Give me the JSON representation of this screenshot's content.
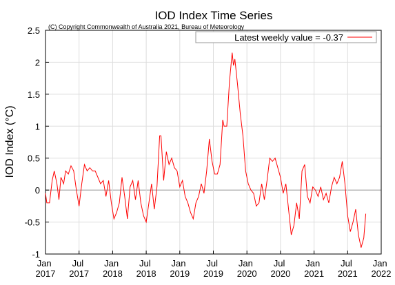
{
  "chart_data": {
    "type": "line",
    "title": "IOD Index Time Series",
    "subtitle": "(C) Copyright Commonwealth of Australia 2021, Bureau of Meteorology",
    "ylabel": "IOD Index (°C)",
    "legend": "upper right",
    "grid": true,
    "xlim": [
      2017,
      2022
    ],
    "ylim": [
      -1,
      2.5
    ],
    "yticks": [
      {
        "value": 2.5,
        "label": "2.5"
      },
      2,
      {
        "value": 1.5,
        "label": "1.5"
      },
      1,
      {
        "value": 0.5,
        "label": "0.5"
      },
      0,
      {
        "value": -0.5,
        "label": "-0.5"
      },
      -1
    ],
    "xticks": [
      {
        "value": 2017,
        "label": "Jan 2017"
      },
      {
        "value": 2017.5,
        "label": "Jul 2017"
      },
      {
        "value": 2018,
        "label": "Jan 2018"
      },
      {
        "value": 2018.5,
        "label": "Jul 2018"
      },
      {
        "value": 2019,
        "label": "Jan 2019"
      },
      {
        "value": 2019.5,
        "label": "Jul 2019"
      },
      {
        "value": 2020,
        "label": "Jan 2020"
      },
      {
        "value": 2020.5,
        "label": "Jul 2020"
      },
      {
        "value": 2021,
        "label": "Jan 2021"
      },
      {
        "value": 2021.5,
        "label": "Jul 2021"
      },
      {
        "value": 2022,
        "label": "Jan 2022"
      }
    ],
    "x": [
      2017.0,
      2017.02,
      2017.06,
      2017.1,
      2017.13,
      2017.17,
      2017.2,
      2017.23,
      2017.27,
      2017.3,
      2017.34,
      2017.38,
      2017.42,
      2017.46,
      2017.5,
      2017.54,
      2017.58,
      2017.62,
      2017.66,
      2017.7,
      2017.74,
      2017.78,
      2017.82,
      2017.86,
      2017.9,
      2017.94,
      2017.98,
      2018.02,
      2018.06,
      2018.1,
      2018.14,
      2018.18,
      2018.22,
      2018.26,
      2018.3,
      2018.34,
      2018.38,
      2018.42,
      2018.46,
      2018.5,
      2018.54,
      2018.58,
      2018.62,
      2018.66,
      2018.7,
      2018.72,
      2018.76,
      2018.8,
      2018.84,
      2018.88,
      2018.92,
      2018.96,
      2019.0,
      2019.04,
      2019.08,
      2019.12,
      2019.16,
      2019.2,
      2019.24,
      2019.28,
      2019.32,
      2019.36,
      2019.4,
      2019.44,
      2019.48,
      2019.52,
      2019.56,
      2019.6,
      2019.64,
      2019.66,
      2019.7,
      2019.74,
      2019.78,
      2019.8,
      2019.82,
      2019.86,
      2019.9,
      2019.94,
      2019.98,
      2020.02,
      2020.06,
      2020.1,
      2020.14,
      2020.18,
      2020.22,
      2020.26,
      2020.3,
      2020.34,
      2020.38,
      2020.42,
      2020.46,
      2020.5,
      2020.54,
      2020.58,
      2020.62,
      2020.66,
      2020.7,
      2020.74,
      2020.78,
      2020.82,
      2020.86,
      2020.9,
      2020.94,
      2020.98,
      2021.02,
      2021.06,
      2021.1,
      2021.14,
      2021.18,
      2021.22,
      2021.26,
      2021.3,
      2021.34,
      2021.38,
      2021.42,
      2021.46,
      2021.5,
      2021.54,
      2021.58,
      2021.62,
      2021.66,
      2021.7,
      2021.74,
      2021.77
    ],
    "series": [
      {
        "name": "Latest weekly value = -0.37",
        "color": "#ff0000",
        "values": [
          -0.05,
          -0.2,
          -0.2,
          0.15,
          0.3,
          0.1,
          -0.15,
          0.2,
          0.1,
          0.3,
          0.25,
          0.38,
          0.3,
          0,
          -0.25,
          0.1,
          0.4,
          0.3,
          0.35,
          0.3,
          0.3,
          0.2,
          0.1,
          0.15,
          -0.1,
          0.15,
          -0.2,
          -0.45,
          -0.35,
          -0.2,
          0.2,
          -0.1,
          -0.45,
          0.05,
          0.15,
          -0.15,
          0.15,
          -0.2,
          -0.4,
          -0.5,
          -0.2,
          0.1,
          -0.3,
          0.05,
          0.85,
          0.85,
          0.15,
          0.6,
          0.4,
          0.5,
          0.35,
          0.3,
          0.05,
          0.15,
          -0.1,
          -0.2,
          -0.35,
          -0.45,
          -0.2,
          -0.1,
          0.1,
          -0.05,
          0.3,
          0.8,
          0.45,
          0.25,
          0.25,
          0.4,
          1.1,
          1.0,
          1.0,
          1.7,
          2.15,
          1.95,
          2.05,
          1.65,
          1.2,
          0.85,
          0.3,
          0.1,
          0.0,
          -0.05,
          -0.25,
          -0.2,
          0.1,
          -0.15,
          0.15,
          0.5,
          0.45,
          0.5,
          0.35,
          0.2,
          -0.05,
          0.1,
          -0.3,
          -0.7,
          -0.55,
          -0.2,
          -0.45,
          0.3,
          0.4,
          -0.1,
          -0.2,
          0.05,
          0.0,
          -0.1,
          0.05,
          -0.15,
          -0.05,
          -0.2,
          0.05,
          0.2,
          0.1,
          0.2,
          0.45,
          0.1,
          -0.4,
          -0.65,
          -0.5,
          -0.3,
          -0.7,
          -0.9,
          -0.75,
          -0.37
        ]
      }
    ]
  }
}
